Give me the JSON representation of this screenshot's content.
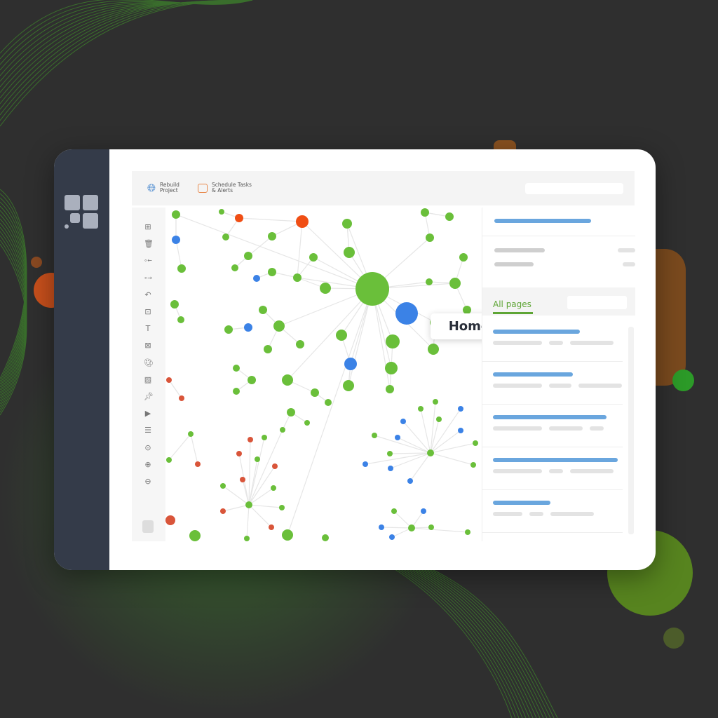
{
  "toolbar": {
    "rebuild": {
      "label": "Rebuild Project",
      "line1": "Rebuild",
      "line2": "Project",
      "icon": "globe-refresh-icon"
    },
    "schedule": {
      "label": "Schedule Tasks & Alerts",
      "line1": "Schedule Tasks",
      "line2": "& Alerts",
      "icon": "calendar-bell-icon"
    }
  },
  "tools": [
    "add-icon",
    "trash-icon",
    "link-in-icon",
    "link-out-icon",
    "undo-icon",
    "focus-icon",
    "text-icon",
    "select-icon",
    "palette-icon",
    "notes-icon",
    "pin-icon",
    "play-icon",
    "list-icon",
    "zoom-fit-icon",
    "zoom-in-icon",
    "zoom-out-icon"
  ],
  "graph": {
    "tooltip": "Homepage"
  },
  "panel": {
    "tab": "All pages"
  },
  "colors": {
    "green": "#6abf3a",
    "blue": "#3b82e6",
    "orange": "#f04e14",
    "red": "#d9553a",
    "sidebar": "#343b49",
    "background": "#2f2f2f"
  }
}
